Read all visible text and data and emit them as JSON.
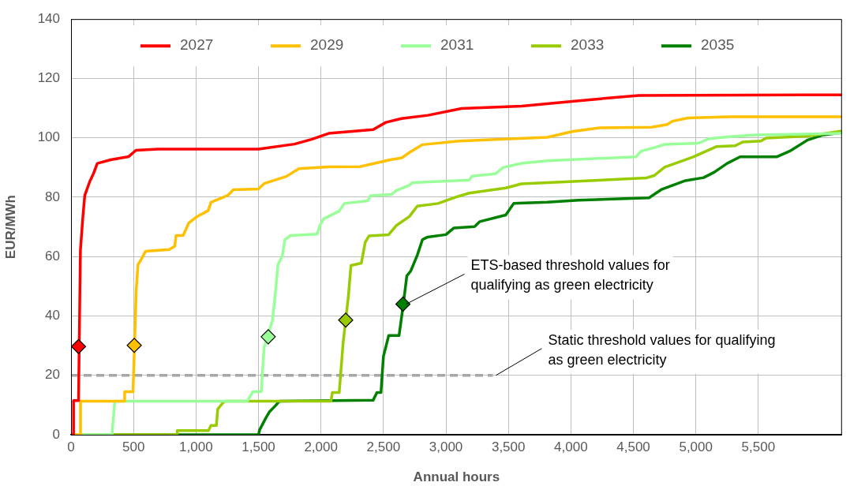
{
  "chart_data": {
    "type": "line",
    "xlabel": "Annual hours",
    "ylabel": "EUR/MWh",
    "xlim": [
      0,
      6169
    ],
    "ylim": [
      0,
      140
    ],
    "xticks": [
      0,
      500,
      {
        "value": 1000,
        "label": "1,000"
      },
      {
        "value": 1500,
        "label": "1,500"
      },
      {
        "value": 2000,
        "label": "2,000"
      },
      {
        "value": 2500,
        "label": "2,500"
      },
      {
        "value": 3000,
        "label": "3,000"
      },
      {
        "value": 3500,
        "label": "3,500"
      },
      {
        "value": 4000,
        "label": "4,000"
      },
      {
        "value": 4500,
        "label": "4,500"
      },
      {
        "value": 5000,
        "label": "5,000"
      },
      {
        "value": 5500,
        "label": "5,500"
      }
    ],
    "yticks": [
      0,
      20,
      40,
      60,
      80,
      100,
      120,
      140
    ],
    "grid": true,
    "legend": "top",
    "marker": "none",
    "line_style": "solid",
    "series": [
      {
        "name": "2027",
        "color": "#ff0000",
        "x": [
          0,
          20,
          20,
          60,
          75,
          94,
          110,
          150,
          180,
          210,
          317,
          462,
          519,
          694,
          1500,
          1788,
          1925,
          2062,
          2418,
          2519,
          2644,
          2856,
          3125,
          3606,
          4062,
          4543,
          6169
        ],
        "values": [
          0,
          0,
          11.5,
          11.5,
          62,
          73,
          80.6,
          85.3,
          88,
          91.4,
          92.6,
          93.7,
          95.8,
          96.2,
          96.2,
          97.9,
          99.5,
          101.5,
          102.8,
          105.2,
          106.5,
          107.6,
          109.9,
          110.7,
          112.5,
          114.3,
          114.5
        ]
      },
      {
        "name": "2029",
        "color": "#ffc000",
        "x": [
          0,
          76,
          76,
          429,
          429,
          496,
          522,
          536,
          562,
          596,
          786,
          830,
          841,
          897,
          942,
          1009,
          1098,
          1120,
          1254,
          1299,
          1500,
          1545,
          1723,
          1824,
          2058,
          2312,
          2562,
          2644,
          2706,
          2812,
          3106,
          3812,
          4010,
          4229,
          4646,
          4771,
          4812,
          4937,
          5271,
          6169
        ],
        "values": [
          0,
          0,
          11.3,
          11.3,
          14.5,
          14.5,
          48.9,
          57.3,
          59.1,
          61.8,
          62.4,
          63.5,
          67.1,
          67.1,
          71.3,
          73.5,
          75.5,
          78.3,
          80.6,
          82.5,
          82.8,
          84.6,
          87,
          89.6,
          90.2,
          90.3,
          92.7,
          93.2,
          95,
          97.7,
          98.9,
          100.2,
          102.1,
          103.4,
          103.6,
          104.5,
          105.6,
          106.7,
          107.1,
          107.1
        ]
      },
      {
        "name": "2031",
        "color": "#99ff99",
        "x": [
          0,
          328,
          350,
          1411,
          1455,
          1522,
          1545,
          1612,
          1634,
          1656,
          1690,
          1712,
          1756,
          1969,
          1991,
          2021,
          2146,
          2187,
          2375,
          2396,
          2562,
          2604,
          2706,
          2729,
          3187,
          3208,
          3396,
          3458,
          3604,
          3812,
          4521,
          4562,
          4667,
          4750,
          5021,
          5104,
          5271,
          5479,
          6169
        ],
        "values": [
          0,
          0,
          11.3,
          11.3,
          14.5,
          14.5,
          29.3,
          38.6,
          47.1,
          57.3,
          60.2,
          65.7,
          67.1,
          67.6,
          70.4,
          72.7,
          75.3,
          77.9,
          78.8,
          80.5,
          80.9,
          82.3,
          84,
          84.9,
          85.8,
          87.1,
          87.9,
          90,
          91.4,
          92.3,
          93.6,
          95.5,
          96.7,
          97.8,
          98.2,
          99.7,
          100.4,
          101,
          101.5
        ]
      },
      {
        "name": "2033",
        "color": "#99cc00",
        "x": [
          0,
          850,
          850,
          1100,
          1120,
          1163,
          1174,
          1210,
          1232,
          2080,
          2091,
          2146,
          2177,
          2219,
          2240,
          2323,
          2354,
          2385,
          2542,
          2604,
          2708,
          2771,
          2937,
          3083,
          3187,
          3479,
          3604,
          3812,
          4604,
          4667,
          4750,
          4896,
          4979,
          5167,
          5312,
          5375,
          5521,
          5562,
          5896,
          6169
        ],
        "values": [
          0,
          0,
          1.4,
          1.4,
          3.1,
          3.1,
          8.6,
          10.5,
          11.3,
          11.3,
          14.2,
          14.2,
          30.8,
          46.5,
          57,
          57.8,
          64.8,
          67,
          67.4,
          70.5,
          73.5,
          77,
          77.9,
          80.1,
          81.4,
          83.1,
          84.5,
          84.9,
          86.5,
          87.3,
          90.1,
          92.3,
          93.6,
          97.1,
          97.3,
          98.6,
          98.9,
          99.9,
          100.6,
          102.3
        ]
      },
      {
        "name": "2035",
        "color": "#008000",
        "x": [
          0,
          1500,
          1510,
          1556,
          1589,
          1632,
          1667,
          2417,
          2448,
          2480,
          2500,
          2542,
          2625,
          2656,
          2687,
          2719,
          2771,
          2812,
          2854,
          3000,
          3062,
          3229,
          3271,
          3479,
          3542,
          3812,
          4062,
          4625,
          4729,
          4917,
          5062,
          5146,
          5250,
          5354,
          5646,
          5750,
          5896,
          6021,
          6169
        ],
        "values": [
          0,
          0,
          1.7,
          5.4,
          7.8,
          9.6,
          11.3,
          11.6,
          14.2,
          14.2,
          26.4,
          33.4,
          33.4,
          43,
          53.5,
          55.2,
          60.5,
          65.7,
          66.6,
          67.4,
          69.6,
          70.1,
          71.8,
          74,
          77.9,
          78.3,
          79,
          79.8,
          82.7,
          85.6,
          86.6,
          88.4,
          91.4,
          93.6,
          93.6,
          95.5,
          99.3,
          101,
          101.8
        ]
      },
      {
        "type": "line",
        "color": "#a6a6a6",
        "line_style": "dashed",
        "x": [
          0,
          3375
        ],
        "values": [
          20,
          20
        ]
      },
      {
        "type": "scatter",
        "marker": "diamond",
        "colors": [
          "#ff0000",
          "#ffc000",
          "#99ff99",
          "#99cc00",
          "#008000"
        ],
        "x": [
          60,
          506,
          1578,
          2198,
          2656
        ],
        "values": [
          29.7,
          30.1,
          33,
          38.6,
          44
        ]
      }
    ],
    "annotations": [
      {
        "text": "ETS-based threshold values for qualifying as green electricity",
        "x": 2656,
        "y": 44
      },
      {
        "text": "Static threshold values for qualifying as green electricity",
        "x": 3375,
        "y": 20
      }
    ]
  }
}
